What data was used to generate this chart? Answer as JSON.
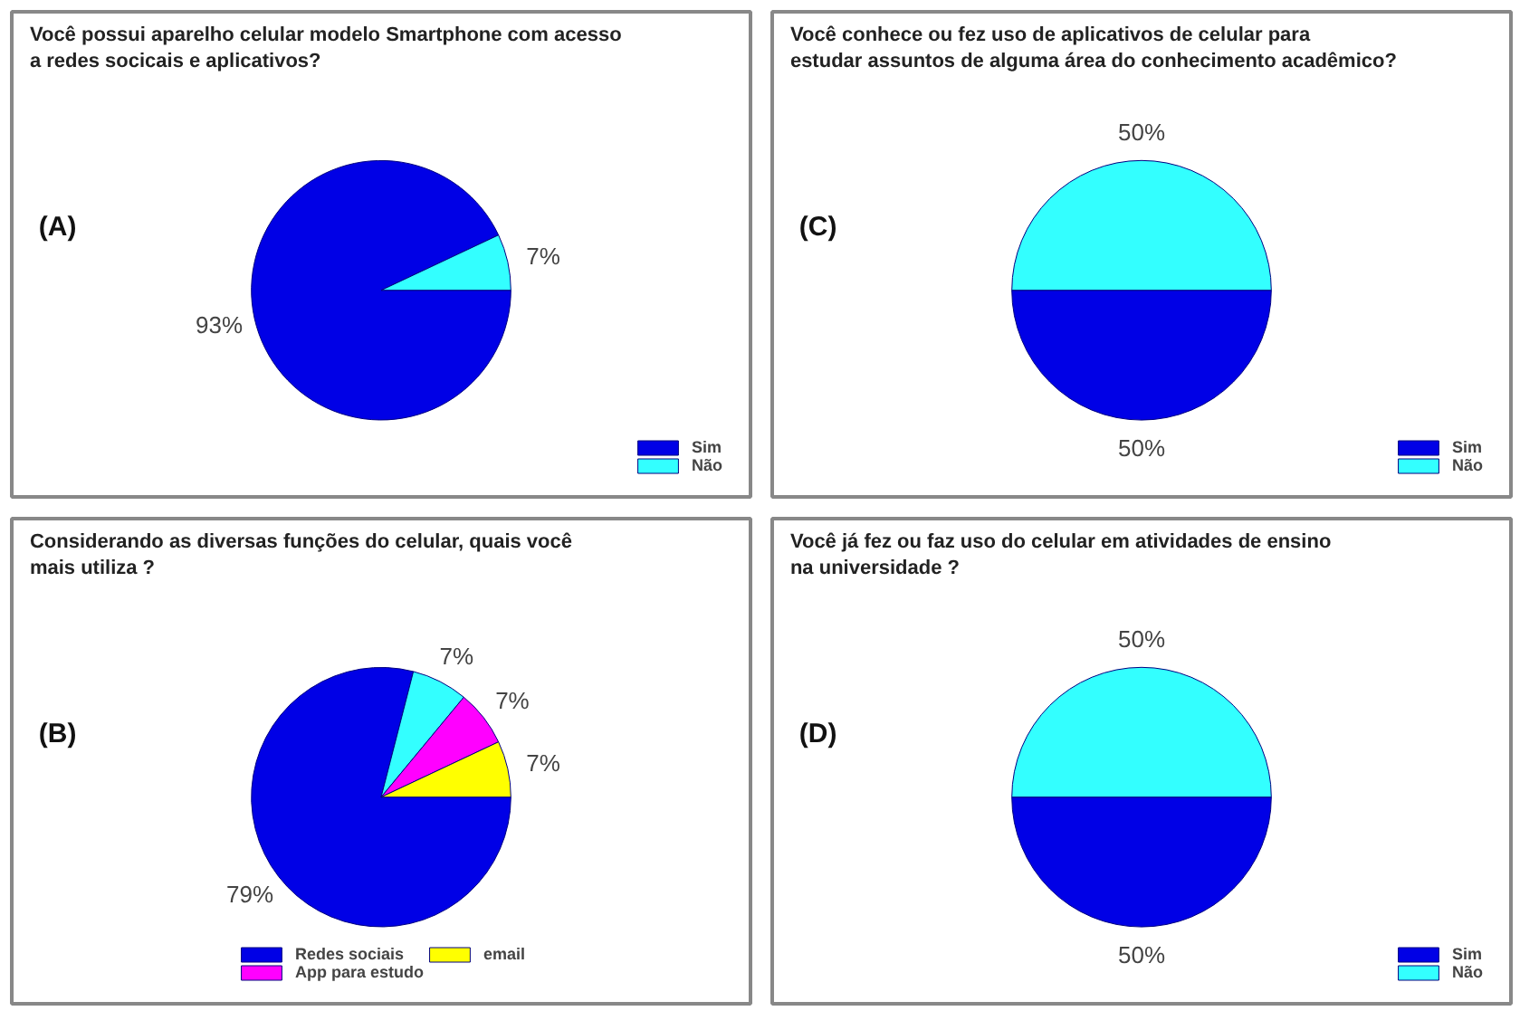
{
  "chart_data": [
    {
      "type": "pie",
      "title": "Você possui aparelho celular modelo Smartphone com acesso a redes socicais e aplicativos?",
      "annotations": [
        "(A)"
      ],
      "categories": [
        "Sim",
        "Não"
      ],
      "values": [
        93,
        7
      ],
      "colors": [
        "#0000e6",
        "#33ffff"
      ],
      "value_labels": [
        "93%",
        "7%"
      ],
      "legend": "bottom right"
    },
    {
      "type": "pie",
      "title": "Você conhece ou fez uso de aplicativos de celular para estudar assuntos de alguma área do conhecimento acadêmico?",
      "annotations": [
        "(C)"
      ],
      "categories": [
        "Sim",
        "Não"
      ],
      "values": [
        50,
        50
      ],
      "colors": [
        "#0000e6",
        "#33ffff"
      ],
      "value_labels": [
        "50%",
        "50%"
      ],
      "legend": "bottom right"
    },
    {
      "type": "pie",
      "title": "Considerando as diversas funções do celular, quais você mais utiliza ?",
      "annotations": [
        "(B)"
      ],
      "categories": [
        "Redes sociais",
        null,
        "App para estudo",
        "email"
      ],
      "values": [
        79,
        7,
        7,
        7
      ],
      "colors": [
        "#0000e6",
        "#33ffff",
        "#ff00ff",
        "#ffff00"
      ],
      "value_labels": [
        "79%",
        "7%",
        "7%",
        "7%"
      ],
      "legend": "bottom"
    },
    {
      "type": "pie",
      "title": "Você já fez ou faz uso do celular em atividades de ensino na universidade ?",
      "annotations": [
        "(D)"
      ],
      "categories": [
        "Sim",
        "Não"
      ],
      "values": [
        50,
        50
      ],
      "colors": [
        "#0000e6",
        "#33ffff"
      ],
      "value_labels": [
        "50%",
        "50%"
      ],
      "legend": "bottom right"
    }
  ]
}
